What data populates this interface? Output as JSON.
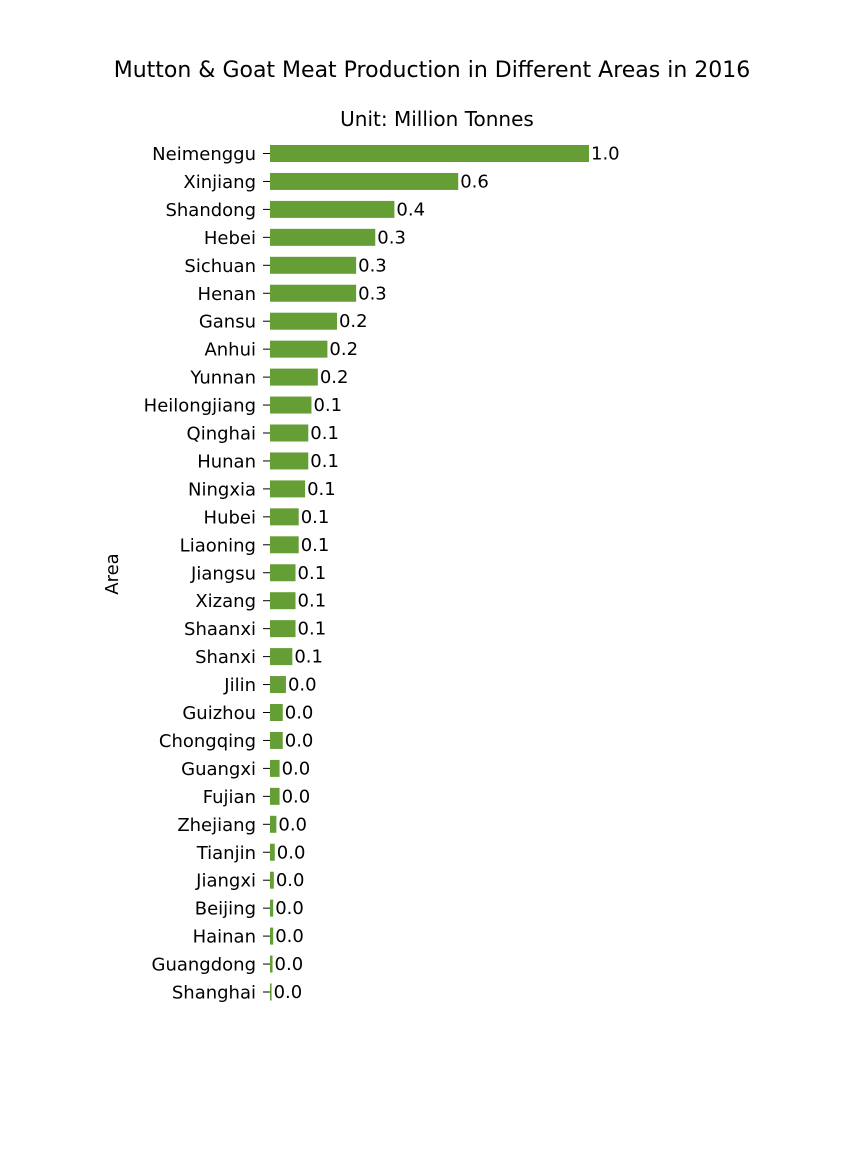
{
  "chart_data": {
    "type": "bar",
    "orientation": "horizontal",
    "title": "Mutton & Goat Meat Production in Different Areas in 2016",
    "subtitle": "Unit: Million Tonnes",
    "xlabel": "",
    "ylabel": "Area",
    "xlim": [
      0,
      1.0
    ],
    "grid": false,
    "bar_color": "#669e36",
    "categories": [
      "Neimenggu",
      "Xinjiang",
      "Shandong",
      "Hebei",
      "Sichuan",
      "Henan",
      "Gansu",
      "Anhui",
      "Yunnan",
      "Heilongjiang",
      "Qinghai",
      "Hunan",
      "Ningxia",
      "Hubei",
      "Liaoning",
      "Jiangsu",
      "Xizang",
      "Shaanxi",
      "Shanxi",
      "Jilin",
      "Guizhou",
      "Chongqing",
      "Guangxi",
      "Fujian",
      "Zhejiang",
      "Tianjin",
      "Jiangxi",
      "Beijing",
      "Hainan",
      "Guangdong",
      "Shanghai"
    ],
    "values": [
      1.0,
      0.59,
      0.39,
      0.33,
      0.27,
      0.27,
      0.21,
      0.18,
      0.15,
      0.13,
      0.12,
      0.12,
      0.11,
      0.09,
      0.09,
      0.08,
      0.08,
      0.08,
      0.07,
      0.05,
      0.04,
      0.04,
      0.03,
      0.03,
      0.02,
      0.015,
      0.012,
      0.01,
      0.01,
      0.008,
      0.005
    ],
    "labels": [
      "1.0",
      "0.6",
      "0.4",
      "0.3",
      "0.3",
      "0.3",
      "0.2",
      "0.2",
      "0.2",
      "0.1",
      "0.1",
      "0.1",
      "0.1",
      "0.1",
      "0.1",
      "0.1",
      "0.1",
      "0.1",
      "0.1",
      "0.0",
      "0.0",
      "0.0",
      "0.0",
      "0.0",
      "0.0",
      "0.0",
      "0.0",
      "0.0",
      "0.0",
      "0.0",
      "0.0"
    ]
  }
}
